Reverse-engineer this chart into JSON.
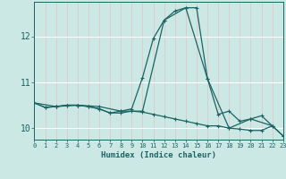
{
  "xlabel": "Humidex (Indice chaleur)",
  "bg_color": "#cce8e4",
  "line_color": "#1a6464",
  "grid_h_color": "#ffffff",
  "grid_v_color": "#e0c8c8",
  "xlim": [
    0,
    23
  ],
  "ylim": [
    9.75,
    12.75
  ],
  "yticks": [
    10,
    11,
    12
  ],
  "xticks": [
    0,
    1,
    2,
    3,
    4,
    5,
    6,
    7,
    8,
    9,
    10,
    11,
    12,
    13,
    14,
    15,
    16,
    17,
    18,
    19,
    20,
    21,
    22,
    23
  ],
  "series1_x": [
    0,
    1,
    2,
    3,
    4,
    5,
    6,
    7,
    8,
    9,
    10,
    11,
    12,
    13,
    14,
    15,
    16,
    17,
    18,
    19,
    20,
    21,
    22,
    23
  ],
  "series1_y": [
    10.55,
    10.45,
    10.47,
    10.5,
    10.5,
    10.47,
    10.42,
    10.33,
    10.33,
    10.37,
    10.35,
    10.3,
    10.25,
    10.2,
    10.15,
    10.1,
    10.05,
    10.05,
    10.0,
    9.98,
    9.95,
    9.95,
    10.05,
    9.83
  ],
  "series2_x": [
    0,
    1,
    2,
    3,
    4,
    5,
    6,
    7,
    8,
    9,
    10,
    11,
    12,
    13,
    14,
    15,
    16,
    17,
    18,
    19,
    20,
    21,
    22,
    23
  ],
  "series2_y": [
    10.55,
    10.45,
    10.47,
    10.5,
    10.5,
    10.47,
    10.42,
    10.33,
    10.37,
    10.42,
    11.1,
    11.95,
    12.35,
    12.55,
    12.62,
    12.62,
    11.08,
    10.3,
    10.37,
    10.15,
    10.2,
    10.27,
    10.05,
    9.83
  ],
  "series3_x": [
    0,
    2,
    4,
    6,
    8,
    10,
    12,
    14,
    16,
    18,
    20,
    22
  ],
  "series3_y": [
    10.55,
    10.47,
    10.5,
    10.47,
    10.37,
    10.37,
    12.35,
    12.62,
    11.08,
    10.0,
    10.2,
    10.05
  ]
}
